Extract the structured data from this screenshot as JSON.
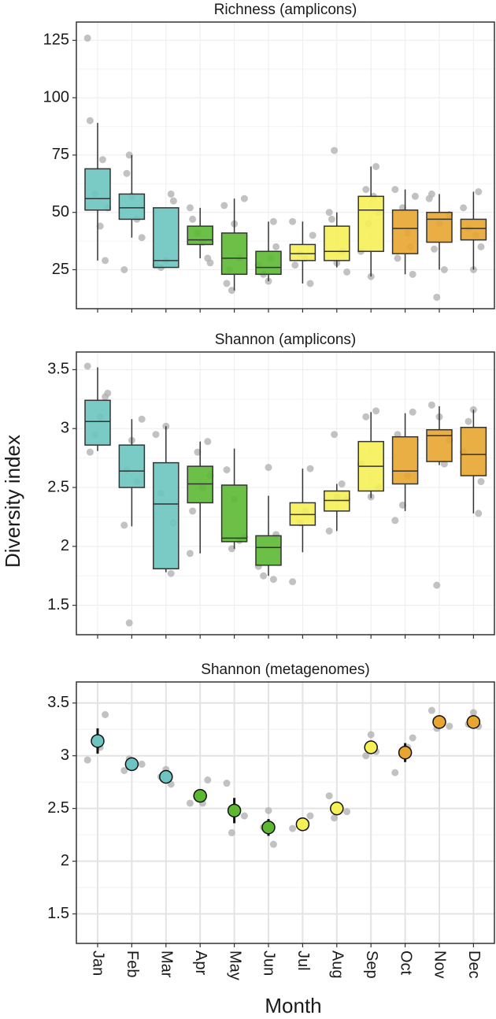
{
  "chart_data": [
    {
      "type": "box",
      "title": "Richness (amplicons)",
      "colors": [
        "#6cc5c0",
        "#6cc5c0",
        "#6cc5c0",
        "#5cb833",
        "#5cb833",
        "#5cb833",
        "#f5f055",
        "#f5f055",
        "#f5f055",
        "#e8a630",
        "#e8a630",
        "#e8a630"
      ],
      "boxes": [
        {
          "low": 29,
          "q1": 51,
          "median": 56,
          "q3": 69,
          "high": 89
        },
        {
          "low": 39,
          "q1": 47,
          "median": 52,
          "q3": 58,
          "high": 75
        },
        {
          "low": 26,
          "q1": 26,
          "median": 29,
          "q3": 52,
          "high": 52
        },
        {
          "low": 30,
          "q1": 36,
          "median": 38,
          "q3": 44,
          "high": 52
        },
        {
          "low": 16,
          "q1": 23,
          "median": 30,
          "q3": 41,
          "high": 56
        },
        {
          "low": 20,
          "q1": 23,
          "median": 26,
          "q3": 33,
          "high": 46
        },
        {
          "low": 19,
          "q1": 29,
          "median": 32,
          "q3": 36,
          "high": 46
        },
        {
          "low": 26,
          "q1": 29,
          "median": 33,
          "q3": 44,
          "high": 50
        },
        {
          "low": 22,
          "q1": 33,
          "median": 51,
          "q3": 57,
          "high": 70
        },
        {
          "low": 23,
          "q1": 32,
          "median": 43,
          "q3": 51,
          "high": 60
        },
        {
          "low": 25,
          "q1": 37,
          "median": 47,
          "q3": 50,
          "high": 58
        },
        {
          "low": 25,
          "q1": 38,
          "median": 43,
          "q3": 47,
          "high": 59
        }
      ],
      "points": [
        [
          126,
          29,
          44,
          58,
          90,
          52,
          73
        ],
        [
          75,
          25,
          39,
          47,
          57,
          67
        ],
        [
          58,
          29,
          26,
          27,
          55
        ],
        [
          52,
          30,
          37,
          41,
          47,
          28
        ],
        [
          16,
          19,
          56,
          30,
          45,
          25,
          53
        ],
        [
          46,
          20,
          23,
          27,
          35,
          30
        ],
        [
          46,
          19,
          30,
          32,
          27,
          40
        ],
        [
          77,
          50,
          24,
          33,
          28,
          47
        ],
        [
          70,
          22,
          60,
          33,
          50,
          57,
          45
        ],
        [
          60,
          23,
          41,
          52,
          30,
          57,
          35
        ],
        [
          13,
          58,
          49,
          25,
          45,
          34,
          56
        ],
        [
          59,
          25,
          43,
          52,
          35,
          40
        ]
      ],
      "ylim": [
        8,
        133
      ],
      "yticks": [
        25,
        50,
        75,
        100,
        125
      ],
      "grid": true
    },
    {
      "type": "box",
      "title": "Shannon (amplicons)",
      "ylabel": "Diversity index",
      "colors": [
        "#6cc5c0",
        "#6cc5c0",
        "#6cc5c0",
        "#5cb833",
        "#5cb833",
        "#5cb833",
        "#f5f055",
        "#f5f055",
        "#f5f055",
        "#e8a630",
        "#e8a630",
        "#e8a630"
      ],
      "boxes": [
        {
          "low": 2.81,
          "q1": 2.86,
          "median": 3.06,
          "q3": 3.24,
          "high": 3.52
        },
        {
          "low": 2.17,
          "q1": 2.5,
          "median": 2.64,
          "q3": 2.86,
          "high": 3.08
        },
        {
          "low": 1.78,
          "q1": 1.81,
          "median": 2.36,
          "q3": 2.71,
          "high": 3.02
        },
        {
          "low": 1.94,
          "q1": 2.37,
          "median": 2.53,
          "q3": 2.68,
          "high": 2.89
        },
        {
          "low": 1.98,
          "q1": 2.04,
          "median": 2.07,
          "q3": 2.52,
          "high": 2.83
        },
        {
          "low": 1.75,
          "q1": 1.84,
          "median": 1.99,
          "q3": 2.09,
          "high": 2.43
        },
        {
          "low": 1.95,
          "q1": 2.18,
          "median": 2.27,
          "q3": 2.37,
          "high": 2.66
        },
        {
          "low": 2.13,
          "q1": 2.3,
          "median": 2.39,
          "q3": 2.47,
          "high": 2.53
        },
        {
          "low": 2.41,
          "q1": 2.47,
          "median": 2.68,
          "q3": 2.89,
          "high": 3.14
        },
        {
          "low": 2.3,
          "q1": 2.53,
          "median": 2.64,
          "q3": 2.93,
          "high": 3.13
        },
        {
          "low": 2.69,
          "q1": 2.72,
          "median": 2.94,
          "q3": 2.99,
          "high": 3.19
        },
        {
          "low": 2.28,
          "q1": 2.6,
          "median": 2.78,
          "q3": 3.01,
          "high": 3.16
        }
      ],
      "points": [
        [
          3.53,
          3.27,
          3.1,
          2.95,
          2.8,
          3.3
        ],
        [
          1.35,
          2.18,
          3.08,
          2.55,
          2.9,
          2.65
        ],
        [
          1.77,
          3.02,
          2.45,
          2.95,
          2.2
        ],
        [
          1.94,
          2.89,
          2.5,
          2.8,
          2.3,
          2.6
        ],
        [
          1.98,
          2.65,
          2.08,
          2.05,
          2.4
        ],
        [
          1.72,
          2.67,
          1.75,
          1.83,
          2.1
        ],
        [
          1.7,
          2.66,
          2.3,
          2.2
        ],
        [
          2.95,
          2.13,
          2.4,
          2.53,
          2.42
        ],
        [
          3.15,
          2.42,
          3.1,
          2.7,
          2.5
        ],
        [
          2.22,
          3.14,
          2.6,
          2.35,
          2.95
        ],
        [
          1.67,
          3.2,
          2.9,
          2.7,
          3.1
        ],
        [
          2.28,
          3.16,
          3.06,
          2.8,
          2.55
        ]
      ],
      "ylim": [
        1.25,
        3.65
      ],
      "yticks": [
        1.5,
        2.0,
        2.5,
        3.0,
        3.5
      ],
      "grid": true
    },
    {
      "type": "point",
      "title": "Shannon (metagenomes)",
      "xlabel": "Month",
      "categories": [
        "Jan",
        "Feb",
        "Mar",
        "Apr",
        "May",
        "Jun",
        "Jul",
        "Aug",
        "Sep",
        "Oct",
        "Nov",
        "Dec"
      ],
      "colors": [
        "#6cc5c0",
        "#6cc5c0",
        "#6cc5c0",
        "#5cb833",
        "#5cb833",
        "#5cb833",
        "#f5f055",
        "#f5f055",
        "#f5f055",
        "#e8a630",
        "#e8a630",
        "#e8a630"
      ],
      "values": [
        3.14,
        2.92,
        2.8,
        2.62,
        2.48,
        2.32,
        2.35,
        2.5,
        3.08,
        3.03,
        3.32,
        3.32
      ],
      "errors": [
        0.12,
        0.03,
        0.03,
        0.05,
        0.12,
        0.08,
        0.02,
        0.04,
        0.03,
        0.09,
        0.03,
        0.03
      ],
      "points": [
        [
          2.96,
          3.39,
          3.08
        ],
        [
          2.97,
          2.86,
          2.92
        ],
        [
          2.73,
          2.87,
          2.8
        ],
        [
          2.55,
          2.77,
          2.55
        ],
        [
          2.27,
          2.74,
          2.43
        ],
        [
          2.16,
          2.48,
          2.32
        ],
        [
          2.31,
          2.43,
          2.32
        ],
        [
          2.41,
          2.62,
          2.47
        ],
        [
          3.04,
          3.2,
          3.0
        ],
        [
          2.84,
          3.17,
          3.08
        ],
        [
          3.26,
          3.43,
          3.28
        ],
        [
          3.28,
          3.41,
          3.3
        ]
      ],
      "ylim": [
        1.22,
        3.7
      ],
      "yticks": [
        1.5,
        2,
        2.5,
        3,
        3.5
      ],
      "grid": true
    }
  ]
}
